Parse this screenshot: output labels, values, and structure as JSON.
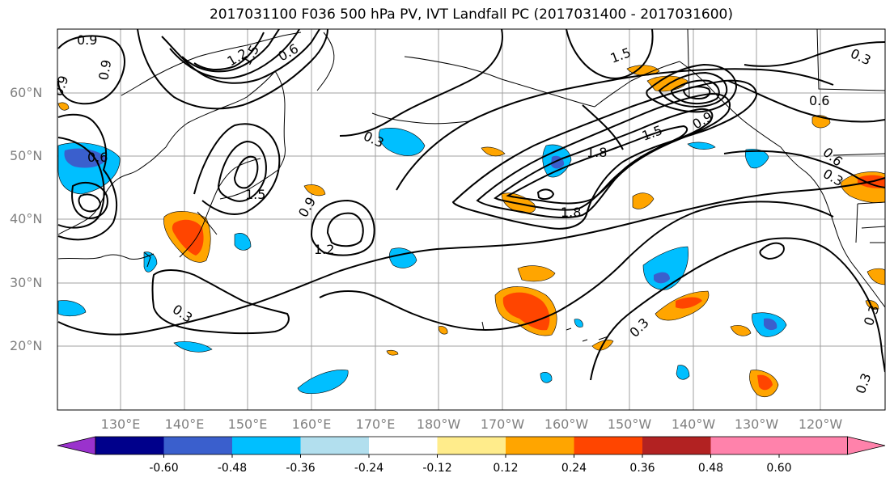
{
  "title": "2017031100 F036 500 hPa PV, IVT Landfall PC (2017031400 - 2017031600)",
  "lat_labels": [
    "60°N",
    "50°N",
    "40°N",
    "30°N",
    "20°N"
  ],
  "lon_labels": [
    "130°E",
    "140°E",
    "150°E",
    "160°E",
    "170°E",
    "180°W",
    "170°W",
    "160°W",
    "150°W",
    "140°W",
    "130°W",
    "120°W"
  ],
  "colorbar": {
    "colors": [
      "#9a32cd",
      "#00008b",
      "#3a5fcd",
      "#00bfff",
      "#b2dfee",
      "#ffffff",
      "#ffec8b",
      "#ffa500",
      "#ff4500",
      "#b22222",
      "#ff82ab"
    ],
    "tick_labels": [
      "-0.60",
      "-0.48",
      "-0.36",
      "-0.24",
      "-0.12",
      "0.12",
      "0.24",
      "0.36",
      "0.48",
      "0.60"
    ]
  },
  "contour_labels": [
    "0.9",
    "0.9",
    "0.9",
    "0.6",
    "1.2",
    "0.6",
    "0.3",
    "1.5",
    "1.5",
    "0.9",
    "1.2",
    "0.3",
    "1.8",
    "1.5",
    "1.8",
    "1.5",
    "0.9",
    "0.6",
    "0.6",
    "0.3",
    "0.3",
    "0.3",
    "0.3",
    "0.3"
  ]
}
